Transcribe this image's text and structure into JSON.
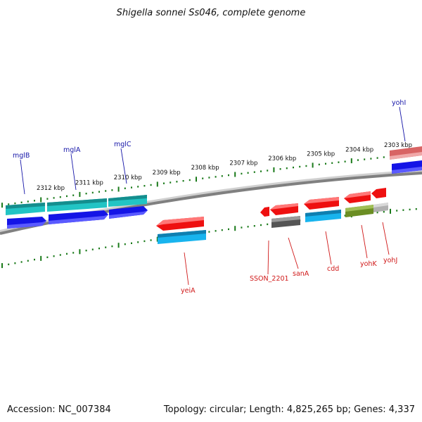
{
  "title": "Shigella sonnei Ss046, complete genome",
  "footer": {
    "accession": "Accession: NC_007384",
    "summary": "Topology: circular; Length: 4,825,265 bp; Genes: 4,337"
  },
  "colors": {
    "backbone": "#808080",
    "tick": "#1a7a1a",
    "label_forward": "#1515a8",
    "label_reverse": "#d01818",
    "cyan_gene": "#22c4c4",
    "blue_gene": "#1414e6",
    "red_gene": "#ee1010",
    "light_blue_gene": "#18b4ee",
    "dark_gray_gene": "#555555",
    "olive_gene": "#6b8e23",
    "light_gray_gene": "#b0b0b0",
    "pink_gene": "#d86464"
  },
  "scale": {
    "unit": "kbp",
    "ticks": [
      {
        "kbp": 2312,
        "label": "2312 kbp"
      },
      {
        "kbp": 2311,
        "label": "2311 kbp"
      },
      {
        "kbp": 2310,
        "label": "2310 kbp"
      },
      {
        "kbp": 2309,
        "label": "2309 kbp"
      },
      {
        "kbp": 2308,
        "label": "2308 kbp"
      },
      {
        "kbp": 2307,
        "label": "2307 kbp"
      },
      {
        "kbp": 2306,
        "label": "2306 kbp"
      },
      {
        "kbp": 2305,
        "label": "2305 kbp"
      },
      {
        "kbp": 2304,
        "label": "2304 kbp"
      },
      {
        "kbp": 2303,
        "label": "2303 kbp"
      }
    ]
  },
  "genes": {
    "forward": [
      {
        "label": "mglB"
      },
      {
        "label": "mglA"
      },
      {
        "label": "mglC"
      },
      {
        "label": "yohI"
      }
    ],
    "reverse": [
      {
        "label": "yeiA"
      },
      {
        "label": "SSON_2201"
      },
      {
        "label": "sanA"
      },
      {
        "label": "cdd"
      },
      {
        "label": "yohK"
      },
      {
        "label": "yohJ"
      }
    ]
  }
}
